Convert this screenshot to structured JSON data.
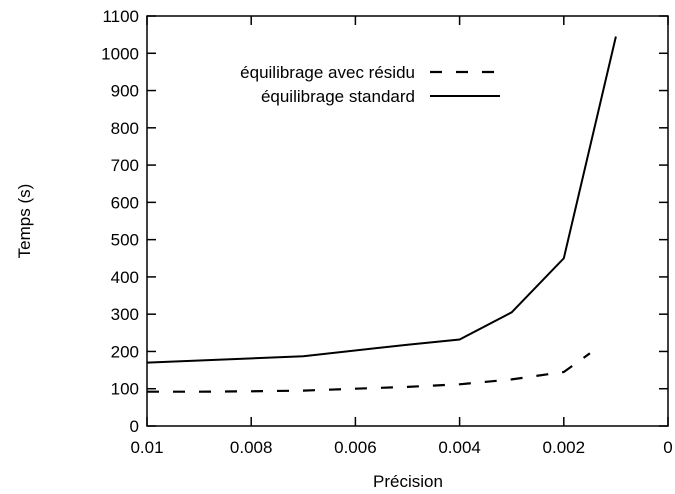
{
  "chart_data": {
    "type": "line",
    "title": "",
    "xlabel": "Précision",
    "ylabel": "Temps (s)",
    "xlim": [
      0.01,
      0
    ],
    "x_reversed": true,
    "ylim": [
      0,
      1100
    ],
    "xticks": [
      0.01,
      0.008,
      0.006,
      0.004,
      0.002,
      0
    ],
    "xtick_labels": [
      "0.01",
      "0.008",
      "0.006",
      "0.004",
      "0.002",
      "0"
    ],
    "yticks": [
      0,
      100,
      200,
      300,
      400,
      500,
      600,
      700,
      800,
      900,
      1000,
      1100
    ],
    "ytick_labels": [
      "0",
      "100",
      "200",
      "300",
      "400",
      "500",
      "600",
      "700",
      "800",
      "900",
      "1000",
      "1100"
    ],
    "grid": false,
    "legend_position": "top-right",
    "series": [
      {
        "name": "équilibrage avec résidu",
        "style": "dashed",
        "color": "#000000",
        "x": [
          0.01,
          0.009,
          0.008,
          0.007,
          0.006,
          0.005,
          0.004,
          0.003,
          0.002,
          0.0015
        ],
        "y": [
          92,
          92,
          93,
          95,
          100,
          105,
          112,
          125,
          145,
          195
        ]
      },
      {
        "name": "équilibrage standard",
        "style": "solid",
        "color": "#000000",
        "x": [
          0.01,
          0.007,
          0.005,
          0.004,
          0.003,
          0.002,
          0.001
        ],
        "y": [
          170,
          187,
          218,
          232,
          305,
          450,
          1045
        ]
      }
    ]
  }
}
